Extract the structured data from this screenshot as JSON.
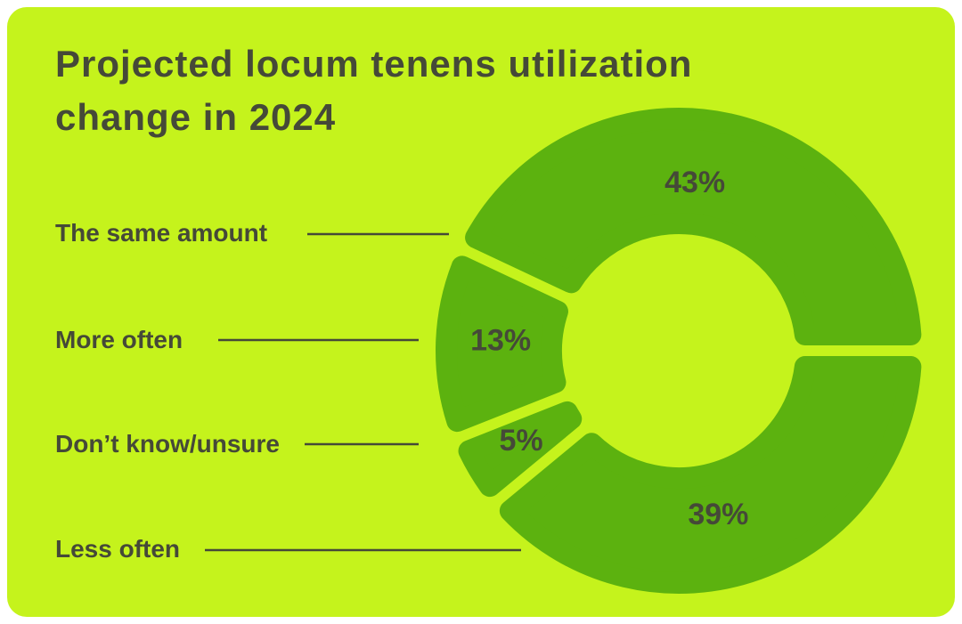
{
  "card": {
    "background_color": "#c5f31c"
  },
  "chart_data": {
    "type": "donut",
    "title": "Projected locum tenens utilization change in 2024",
    "unit": "%",
    "start_angle_deg": 0,
    "direction": "counterclockwise",
    "legend_position": "left",
    "slices": [
      {
        "label": "The same amount",
        "value": 43,
        "display": "43%"
      },
      {
        "label": "More often",
        "value": 13,
        "display": "13%"
      },
      {
        "label": "Don’t know/unsure",
        "value": 5,
        "display": "5%"
      },
      {
        "label": "Less often",
        "value": 39,
        "display": "39%"
      }
    ],
    "colors": {
      "slice": "#5cb20f",
      "background": "#c5f31c",
      "text": "#454938",
      "leader_line": "#454938"
    }
  }
}
